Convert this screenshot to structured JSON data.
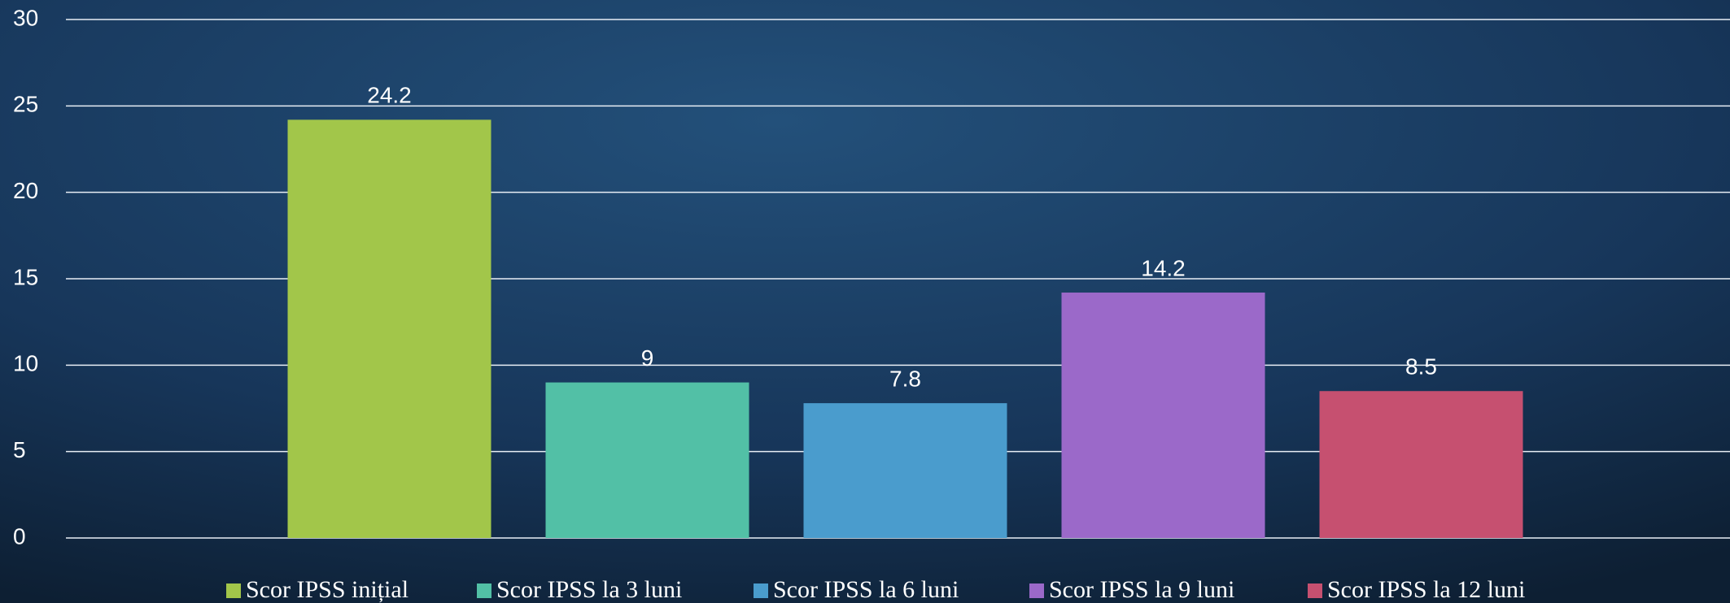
{
  "chart_data": {
    "type": "bar",
    "categories": [
      null
    ],
    "series": [
      {
        "name": "Scor IPSS inițial",
        "color": "#a2c64a",
        "values": [
          24.2
        ]
      },
      {
        "name": "Scor IPSS la 3 luni",
        "color": "#52c0a6",
        "values": [
          9
        ]
      },
      {
        "name": "Scor IPSS la 6 luni",
        "color": "#4a9ccd",
        "values": [
          7.8
        ]
      },
      {
        "name": "Scor IPSS la 9 luni",
        "color": "#9b69c9",
        "values": [
          14.2
        ]
      },
      {
        "name": "Scor IPSS la 12 luni",
        "color": "#c65070",
        "values": [
          8.5
        ]
      }
    ],
    "ylim": [
      0,
      30
    ],
    "yticks": [
      0,
      5,
      10,
      15,
      20,
      25,
      30
    ],
    "grid": true,
    "legend": "bottom"
  }
}
